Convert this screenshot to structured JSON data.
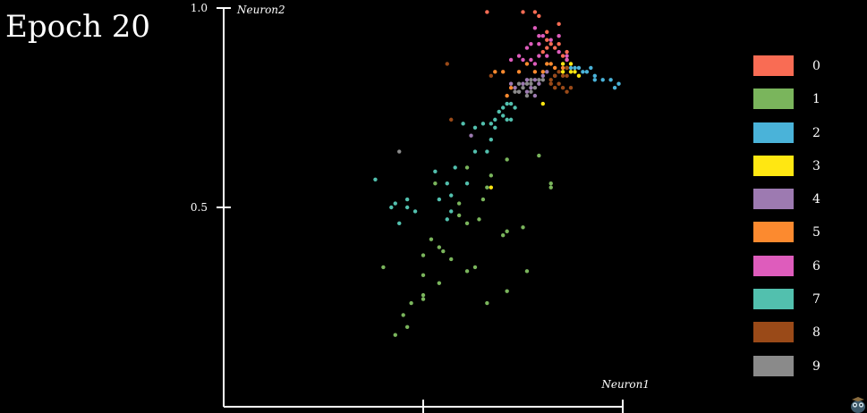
{
  "header": {
    "epoch_label": "Epoch 20"
  },
  "chart_data": {
    "type": "scatter",
    "xlabel": "Neuron1",
    "ylabel": "Neuron2",
    "ylim": [
      0.0,
      1.0
    ],
    "xlim": [
      0.0,
      1.0
    ],
    "y_ticks": [
      {
        "value": 1.0,
        "label": "1.0"
      },
      {
        "value": 0.5,
        "label": "0.5"
      }
    ],
    "x_ticks": [
      0.5,
      1.0
    ],
    "grid": false,
    "legend": "right",
    "series": [
      {
        "name": "0",
        "color": "#f96c54",
        "points": [
          [
            0.66,
            0.99
          ],
          [
            0.75,
            0.99
          ],
          [
            0.79,
            0.98
          ],
          [
            0.78,
            0.99
          ],
          [
            0.84,
            0.96
          ],
          [
            0.81,
            0.94
          ],
          [
            0.81,
            0.92
          ],
          [
            0.82,
            0.91
          ],
          [
            0.83,
            0.9
          ],
          [
            0.85,
            0.88
          ],
          [
            0.86,
            0.89
          ],
          [
            0.8,
            0.89
          ],
          [
            0.81,
            0.9
          ],
          [
            0.84,
            0.91
          ]
        ]
      },
      {
        "name": "1",
        "color": "#7ab55c",
        "points": [
          [
            0.82,
            0.56
          ],
          [
            0.79,
            0.63
          ],
          [
            0.71,
            0.62
          ],
          [
            0.67,
            0.58
          ],
          [
            0.66,
            0.55
          ],
          [
            0.61,
            0.6
          ],
          [
            0.65,
            0.52
          ],
          [
            0.59,
            0.48
          ],
          [
            0.64,
            0.47
          ],
          [
            0.61,
            0.46
          ],
          [
            0.7,
            0.43
          ],
          [
            0.71,
            0.44
          ],
          [
            0.75,
            0.45
          ],
          [
            0.52,
            0.42
          ],
          [
            0.54,
            0.4
          ],
          [
            0.55,
            0.39
          ],
          [
            0.5,
            0.38
          ],
          [
            0.57,
            0.37
          ],
          [
            0.63,
            0.35
          ],
          [
            0.61,
            0.34
          ],
          [
            0.5,
            0.33
          ],
          [
            0.54,
            0.31
          ],
          [
            0.76,
            0.34
          ],
          [
            0.71,
            0.29
          ],
          [
            0.4,
            0.35
          ],
          [
            0.5,
            0.28
          ],
          [
            0.5,
            0.27
          ],
          [
            0.47,
            0.26
          ],
          [
            0.45,
            0.23
          ],
          [
            0.46,
            0.2
          ],
          [
            0.43,
            0.18
          ],
          [
            0.66,
            0.26
          ],
          [
            0.82,
            0.55
          ],
          [
            0.59,
            0.51
          ],
          [
            0.53,
            0.56
          ]
        ]
      },
      {
        "name": "2",
        "color": "#4ab3d9",
        "points": [
          [
            0.91,
            0.84
          ],
          [
            0.93,
            0.82
          ],
          [
            0.95,
            0.82
          ],
          [
            0.97,
            0.82
          ],
          [
            0.99,
            0.81
          ],
          [
            0.98,
            0.8
          ],
          [
            0.93,
            0.83
          ],
          [
            0.9,
            0.84
          ],
          [
            0.89,
            0.85
          ],
          [
            0.88,
            0.85
          ],
          [
            0.87,
            0.85
          ],
          [
            0.92,
            0.85
          ]
        ]
      },
      {
        "name": "3",
        "color": "#ffe712",
        "points": [
          [
            0.86,
            0.87
          ],
          [
            0.86,
            0.85
          ],
          [
            0.87,
            0.84
          ],
          [
            0.89,
            0.83
          ],
          [
            0.85,
            0.86
          ],
          [
            0.87,
            0.86
          ],
          [
            0.85,
            0.84
          ],
          [
            0.8,
            0.76
          ],
          [
            0.67,
            0.55
          ],
          [
            0.88,
            0.84
          ]
        ]
      },
      {
        "name": "4",
        "color": "#9d7ab1",
        "points": [
          [
            0.72,
            0.81
          ],
          [
            0.76,
            0.82
          ],
          [
            0.77,
            0.8
          ],
          [
            0.78,
            0.82
          ],
          [
            0.79,
            0.81
          ],
          [
            0.73,
            0.8
          ],
          [
            0.74,
            0.79
          ],
          [
            0.76,
            0.79
          ],
          [
            0.78,
            0.78
          ],
          [
            0.8,
            0.83
          ],
          [
            0.81,
            0.84
          ],
          [
            0.83,
            0.83
          ],
          [
            0.75,
            0.81
          ],
          [
            0.62,
            0.68
          ]
        ]
      },
      {
        "name": "5",
        "color": "#fc8a2f",
        "points": [
          [
            0.78,
            0.84
          ],
          [
            0.82,
            0.86
          ],
          [
            0.83,
            0.85
          ],
          [
            0.74,
            0.84
          ],
          [
            0.7,
            0.84
          ],
          [
            0.68,
            0.84
          ],
          [
            0.71,
            0.78
          ],
          [
            0.76,
            0.86
          ],
          [
            0.8,
            0.84
          ],
          [
            0.81,
            0.86
          ],
          [
            0.85,
            0.85
          ],
          [
            0.72,
            0.8
          ]
        ]
      },
      {
        "name": "6",
        "color": "#de5cbc",
        "points": [
          [
            0.78,
            0.95
          ],
          [
            0.79,
            0.93
          ],
          [
            0.8,
            0.93
          ],
          [
            0.79,
            0.91
          ],
          [
            0.77,
            0.91
          ],
          [
            0.76,
            0.9
          ],
          [
            0.82,
            0.92
          ],
          [
            0.84,
            0.93
          ],
          [
            0.84,
            0.89
          ],
          [
            0.77,
            0.87
          ],
          [
            0.75,
            0.87
          ],
          [
            0.74,
            0.88
          ],
          [
            0.86,
            0.87
          ],
          [
            0.86,
            0.88
          ],
          [
            0.72,
            0.87
          ],
          [
            0.79,
            0.88
          ],
          [
            0.81,
            0.88
          ],
          [
            0.78,
            0.86
          ]
        ]
      },
      {
        "name": "7",
        "color": "#52c0ae",
        "points": [
          [
            0.69,
            0.74
          ],
          [
            0.7,
            0.73
          ],
          [
            0.71,
            0.72
          ],
          [
            0.72,
            0.72
          ],
          [
            0.73,
            0.75
          ],
          [
            0.71,
            0.76
          ],
          [
            0.7,
            0.75
          ],
          [
            0.72,
            0.76
          ],
          [
            0.68,
            0.72
          ],
          [
            0.65,
            0.71
          ],
          [
            0.67,
            0.71
          ],
          [
            0.68,
            0.7
          ],
          [
            0.6,
            0.71
          ],
          [
            0.63,
            0.7
          ],
          [
            0.67,
            0.67
          ],
          [
            0.63,
            0.64
          ],
          [
            0.42,
            0.5
          ],
          [
            0.38,
            0.57
          ],
          [
            0.46,
            0.5
          ],
          [
            0.46,
            0.52
          ],
          [
            0.43,
            0.51
          ],
          [
            0.48,
            0.49
          ],
          [
            0.53,
            0.59
          ],
          [
            0.54,
            0.52
          ],
          [
            0.56,
            0.56
          ],
          [
            0.58,
            0.6
          ],
          [
            0.57,
            0.53
          ],
          [
            0.56,
            0.47
          ],
          [
            0.57,
            0.49
          ],
          [
            0.61,
            0.56
          ],
          [
            0.66,
            0.64
          ],
          [
            0.44,
            0.46
          ]
        ]
      },
      {
        "name": "8",
        "color": "#9a4a18",
        "points": [
          [
            0.57,
            0.72
          ],
          [
            0.56,
            0.86
          ],
          [
            0.67,
            0.83
          ],
          [
            0.82,
            0.82
          ],
          [
            0.83,
            0.83
          ],
          [
            0.85,
            0.83
          ],
          [
            0.86,
            0.85
          ],
          [
            0.84,
            0.84
          ],
          [
            0.86,
            0.83
          ],
          [
            0.84,
            0.81
          ],
          [
            0.83,
            0.8
          ],
          [
            0.85,
            0.8
          ],
          [
            0.86,
            0.79
          ],
          [
            0.87,
            0.8
          ],
          [
            0.82,
            0.81
          ]
        ]
      },
      {
        "name": "9",
        "color": "#8a8a8a",
        "points": [
          [
            0.74,
            0.79
          ],
          [
            0.75,
            0.8
          ],
          [
            0.77,
            0.81
          ],
          [
            0.78,
            0.8
          ],
          [
            0.76,
            0.81
          ],
          [
            0.77,
            0.79
          ],
          [
            0.79,
            0.82
          ],
          [
            0.8,
            0.82
          ],
          [
            0.73,
            0.79
          ],
          [
            0.76,
            0.78
          ],
          [
            0.44,
            0.64
          ],
          [
            0.74,
            0.81
          ],
          [
            0.77,
            0.82
          ]
        ]
      }
    ]
  }
}
